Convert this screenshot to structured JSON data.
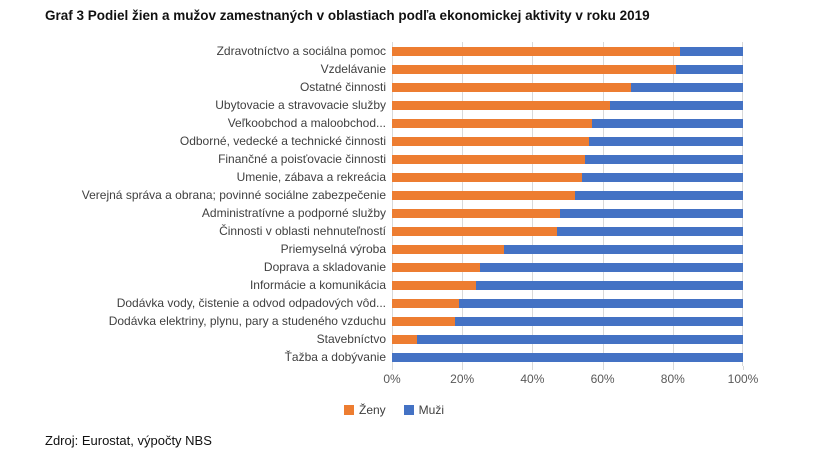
{
  "title": "Graf 3 Podiel žien a mužov zamestnaných v oblastiach podľa  ekonomickej aktivity v roku 2019",
  "source": "Zdroj: Eurostat, výpočty NBS",
  "colors": {
    "women": "#ED7D31",
    "men": "#4472C4",
    "gridline": "#D9D9D9",
    "axis_text": "#595959",
    "label_text": "#404040"
  },
  "legend": [
    {
      "label": "Ženy",
      "color": "#ED7D31"
    },
    {
      "label": "Muži",
      "color": "#4472C4"
    }
  ],
  "chart_data": {
    "type": "bar",
    "orientation": "horizontal",
    "stacked": true,
    "title": "Graf 3 Podiel žien a mužov zamestnaných v oblastiach podľa  ekonomickej aktivity v roku 2019",
    "categories": [
      "Zdravotníctvo a sociálna pomoc",
      "Vzdelávanie",
      "Ostatné činnosti",
      "Ubytovacie a stravovacie služby",
      "Veľkoobchod a maloobchod...",
      "Odborné, vedecké a technické činnosti",
      "Finančné a poisťovacie činnosti",
      "Umenie, zábava a rekreácia",
      "Verejná správa a obrana; povinné sociálne zabezpečenie",
      "Administratívne a podporné služby",
      "Činnosti v oblasti nehnuteľností",
      "Priemyselná výroba",
      "Doprava a skladovanie",
      "Informácie a komunikácia",
      "Dodávka vody, čistenie a odvod odpadových vôd...",
      "Dodávka elektriny, plynu, pary a studeného vzduchu",
      "Stavebníctvo",
      "Ťažba a dobývanie"
    ],
    "series": [
      {
        "name": "Ženy",
        "color": "#ED7D31",
        "values": [
          82,
          81,
          68,
          62,
          57,
          56,
          55,
          54,
          52,
          48,
          47,
          32,
          25,
          24,
          19,
          18,
          7,
          0
        ]
      },
      {
        "name": "Muži",
        "color": "#4472C4",
        "values": [
          18,
          19,
          32,
          38,
          43,
          44,
          45,
          46,
          48,
          52,
          53,
          68,
          75,
          76,
          81,
          82,
          93,
          100
        ]
      }
    ],
    "x_ticks": [
      "0%",
      "20%",
      "40%",
      "60%",
      "80%",
      "100%"
    ],
    "xlim": [
      0,
      100
    ],
    "grid": true,
    "legend_position": "bottom"
  }
}
